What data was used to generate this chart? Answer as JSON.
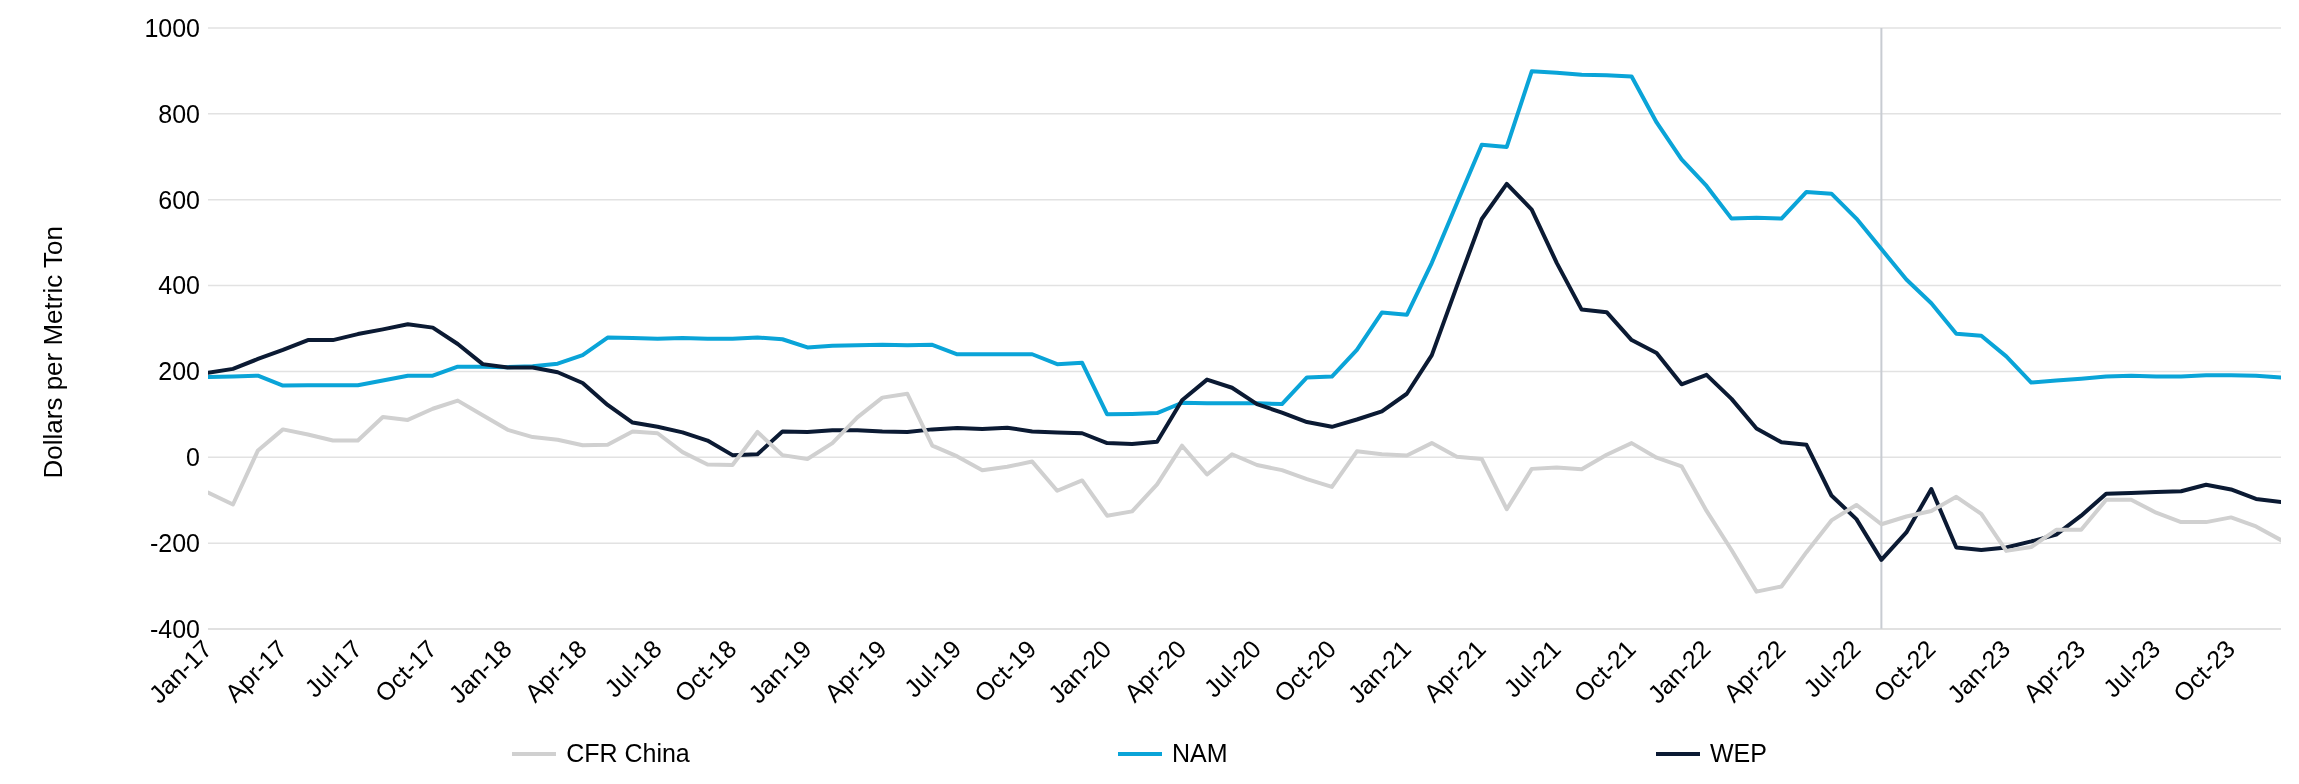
{
  "chart_data": {
    "type": "line",
    "ylabel": "Dollars per Metric Ton",
    "x": [
      "2017-01",
      "2017-02",
      "2017-03",
      "2017-04",
      "2017-05",
      "2017-06",
      "2017-07",
      "2017-08",
      "2017-09",
      "2017-10",
      "2017-11",
      "2017-12",
      "2018-01",
      "2018-02",
      "2018-03",
      "2018-04",
      "2018-05",
      "2018-06",
      "2018-07",
      "2018-08",
      "2018-09",
      "2018-10",
      "2018-11",
      "2018-12",
      "2019-01",
      "2019-02",
      "2019-03",
      "2019-04",
      "2019-05",
      "2019-06",
      "2019-07",
      "2019-08",
      "2019-09",
      "2019-10",
      "2019-11",
      "2019-12",
      "2020-01",
      "2020-02",
      "2020-03",
      "2020-04",
      "2020-05",
      "2020-06",
      "2020-07",
      "2020-08",
      "2020-09",
      "2020-10",
      "2020-11",
      "2020-12",
      "2021-01",
      "2021-02",
      "2021-03",
      "2021-04",
      "2021-05",
      "2021-06",
      "2021-07",
      "2021-08",
      "2021-09",
      "2021-10",
      "2021-11",
      "2021-12",
      "2022-01",
      "2022-02",
      "2022-03",
      "2022-04",
      "2022-05",
      "2022-06",
      "2022-07",
      "2022-08",
      "2022-09",
      "2022-10",
      "2022-11",
      "2022-12",
      "2023-01",
      "2023-02",
      "2023-03",
      "2023-04",
      "2023-05",
      "2023-06",
      "2023-07",
      "2023-08",
      "2023-09",
      "2023-10",
      "2023-11",
      "2023-12"
    ],
    "series": [
      {
        "name": "NAM",
        "color": "#0aa4d8",
        "values": [
          187,
          188,
          190,
          167,
          168,
          168,
          168,
          179,
          190,
          190,
          211,
          211,
          210,
          212,
          218,
          238,
          279,
          278,
          276,
          278,
          276,
          276,
          279,
          275,
          256,
          260,
          261,
          262,
          261,
          262,
          240,
          240,
          240,
          240,
          217,
          220,
          100,
          101,
          103,
          127,
          126,
          126,
          126,
          124,
          186,
          188,
          250,
          337,
          332,
          453,
          591,
          728,
          723,
          899,
          896,
          891,
          890,
          887,
          780,
          694,
          632,
          556,
          558,
          556,
          618,
          614,
          556,
          485,
          414,
          359,
          288,
          283,
          235,
          174,
          179,
          183,
          188,
          190,
          188,
          188,
          191,
          191,
          190,
          186
        ]
      },
      {
        "name": "WEP",
        "color": "#0b1a33",
        "values": [
          197,
          206,
          229,
          250,
          273,
          273,
          287,
          298,
          310,
          302,
          264,
          217,
          209,
          209,
          198,
          173,
          122,
          81,
          71,
          58,
          39,
          5,
          7,
          60,
          59,
          63,
          63,
          60,
          59,
          65,
          68,
          66,
          69,
          60,
          58,
          56,
          33,
          31,
          36,
          133,
          181,
          162,
          124,
          104,
          82,
          71,
          88,
          107,
          148,
          238,
          398,
          555,
          637,
          577,
          453,
          344,
          338,
          273,
          243,
          170,
          192,
          136,
          67,
          35,
          29,
          -89,
          -144,
          -239,
          -175,
          -74,
          -210,
          -216,
          -210,
          -196,
          -180,
          -136,
          -85,
          -83,
          -81,
          -79,
          -64,
          -75,
          -97,
          -104
        ]
      },
      {
        "name": "CFR China",
        "color": "#d0d0d0",
        "values": [
          -82,
          -110,
          16,
          65,
          53,
          39,
          39,
          94,
          87,
          113,
          132,
          98,
          64,
          47,
          41,
          28,
          29,
          60,
          56,
          12,
          -17,
          -18,
          59,
          5,
          -4,
          33,
          93,
          139,
          148,
          27,
          2,
          -30,
          -22,
          -10,
          -78,
          -54,
          -136,
          -126,
          -63,
          27,
          -40,
          7,
          -18,
          -30,
          -51,
          -69,
          14,
          7,
          4,
          33,
          1,
          -4,
          -121,
          -27,
          -24,
          -28,
          6,
          33,
          -1,
          -21,
          -125,
          -216,
          -313,
          -301,
          -221,
          -147,
          -111,
          -156,
          -138,
          -125,
          -92,
          -132,
          -218,
          -209,
          -169,
          -169,
          -99,
          -99,
          -129,
          -151,
          -151,
          -140,
          -161,
          -193
        ]
      }
    ],
    "xlim": [
      "2017-01",
      "2023-12"
    ],
    "xticks": [
      {
        "value": "2017-01",
        "label": "Jan-17"
      },
      {
        "value": "2017-04",
        "label": "Apr-17"
      },
      {
        "value": "2017-07",
        "label": "Jul-17"
      },
      {
        "value": "2017-10",
        "label": "Oct-17"
      },
      {
        "value": "2018-01",
        "label": "Jan-18"
      },
      {
        "value": "2018-04",
        "label": "Apr-18"
      },
      {
        "value": "2018-07",
        "label": "Jul-18"
      },
      {
        "value": "2018-10",
        "label": "Oct-18"
      },
      {
        "value": "2019-01",
        "label": "Jan-19"
      },
      {
        "value": "2019-04",
        "label": "Apr-19"
      },
      {
        "value": "2019-07",
        "label": "Jul-19"
      },
      {
        "value": "2019-10",
        "label": "Oct-19"
      },
      {
        "value": "2020-01",
        "label": "Jan-20"
      },
      {
        "value": "2020-04",
        "label": "Apr-20"
      },
      {
        "value": "2020-07",
        "label": "Jul-20"
      },
      {
        "value": "2020-10",
        "label": "Oct-20"
      },
      {
        "value": "2021-01",
        "label": "Jan-21"
      },
      {
        "value": "2021-04",
        "label": "Apr-21"
      },
      {
        "value": "2021-07",
        "label": "Jul-21"
      },
      {
        "value": "2021-10",
        "label": "Oct-21"
      },
      {
        "value": "2022-01",
        "label": "Jan-22"
      },
      {
        "value": "2022-04",
        "label": "Apr-22"
      },
      {
        "value": "2022-07",
        "label": "Jul-22"
      },
      {
        "value": "2022-10",
        "label": "Oct-22"
      },
      {
        "value": "2023-01",
        "label": "Jan-23"
      },
      {
        "value": "2023-04",
        "label": "Apr-23"
      },
      {
        "value": "2023-07",
        "label": "Jul-23"
      },
      {
        "value": "2023-10",
        "label": "Oct-23"
      }
    ],
    "ylim": [
      -400,
      1000
    ],
    "yticks": [
      -400,
      -200,
      0,
      200,
      400,
      600,
      800,
      1000
    ],
    "grid": "y",
    "legend": "bottom",
    "marker": "none",
    "line_style": "solid",
    "ref_lines": [
      {
        "axis": "x",
        "value": "2022-08",
        "color": "#c8ccd2"
      }
    ]
  }
}
